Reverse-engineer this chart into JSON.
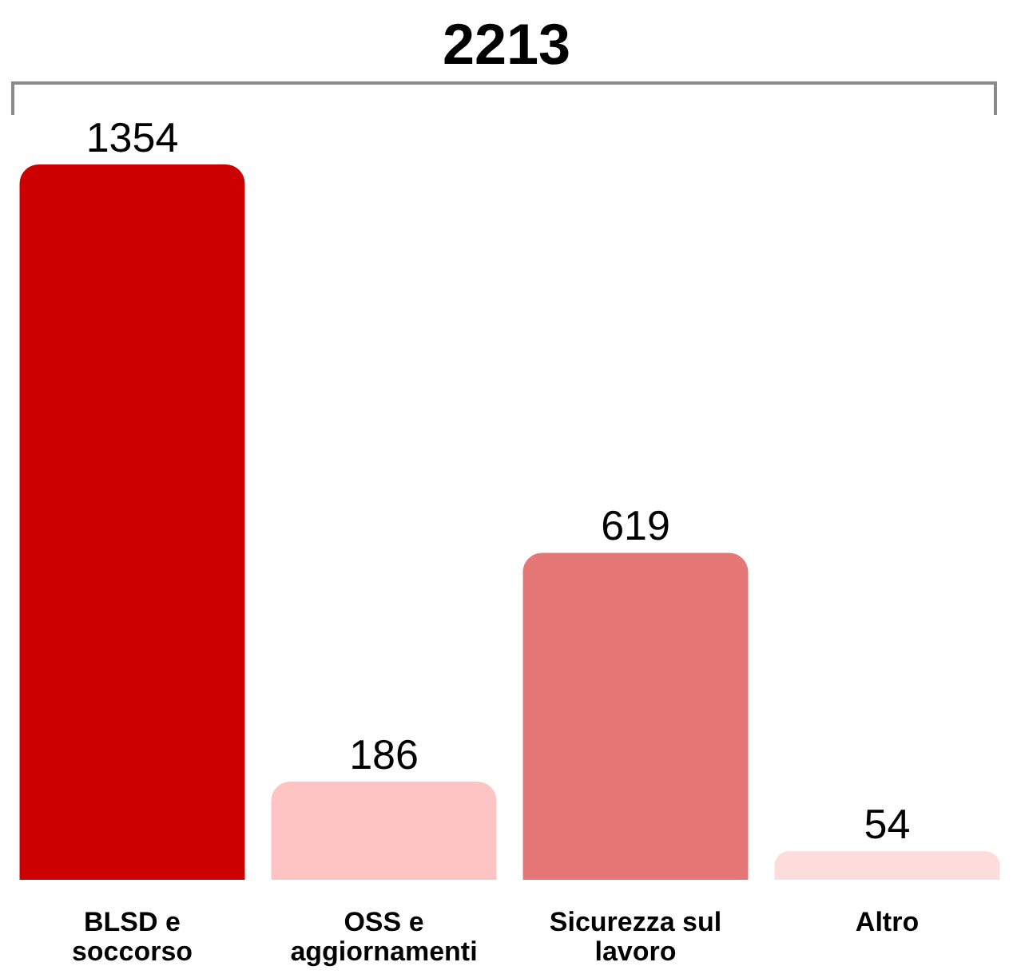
{
  "chart_data": {
    "type": "bar",
    "title": "2213",
    "categories": [
      "BLSD e soccorso",
      "OSS e aggiornamenti",
      "Sicurezza sul lavoro",
      "Altro"
    ],
    "values": [
      1354,
      186,
      619,
      54
    ],
    "colors": [
      "#cc0000",
      "#fec3c3",
      "#e57777",
      "#fddcdc"
    ],
    "data_labels": true,
    "tick_labels": "x"
  }
}
